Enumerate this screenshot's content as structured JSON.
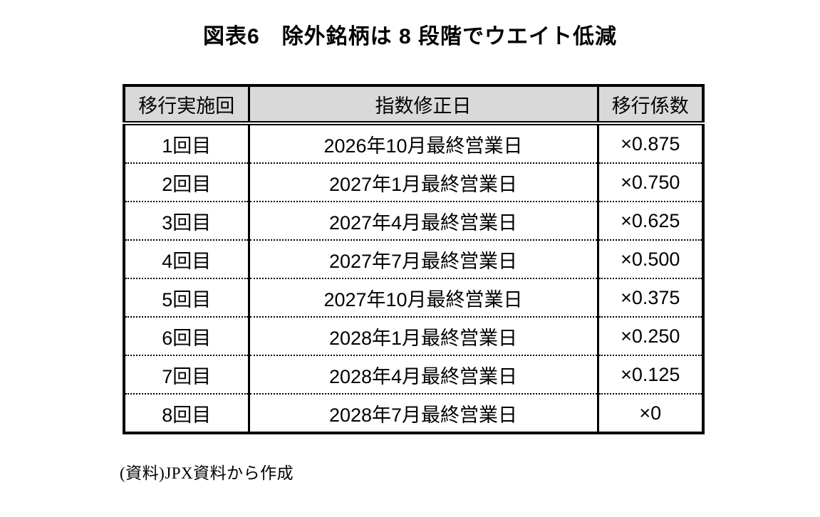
{
  "figure": {
    "title": "図表6　除外銘柄は 8 段階でウエイト低減"
  },
  "table": {
    "columns": [
      {
        "label": "移行実施回"
      },
      {
        "label": "指数修正日"
      },
      {
        "label": "移行係数"
      }
    ],
    "rows": [
      {
        "round": "1回目",
        "date": "2026年10月最終営業日",
        "factor": "×0.875"
      },
      {
        "round": "2回目",
        "date": "2027年1月最終営業日",
        "factor": "×0.750"
      },
      {
        "round": "3回目",
        "date": "2027年4月最終営業日",
        "factor": "×0.625"
      },
      {
        "round": "4回目",
        "date": "2027年7月最終営業日",
        "factor": "×0.500"
      },
      {
        "round": "5回目",
        "date": "2027年10月最終営業日",
        "factor": "×0.375"
      },
      {
        "round": "6回目",
        "date": "2028年1月最終営業日",
        "factor": "×0.250"
      },
      {
        "round": "7回目",
        "date": "2028年4月最終営業日",
        "factor": "×0.125"
      },
      {
        "round": "8回目",
        "date": "2028年7月最終営業日",
        "factor": "×0"
      }
    ]
  },
  "source_note": "(資料)JPX資料から作成",
  "colors": {
    "header_bg": "#d9d9d9",
    "border": "#000000",
    "background": "#ffffff"
  }
}
